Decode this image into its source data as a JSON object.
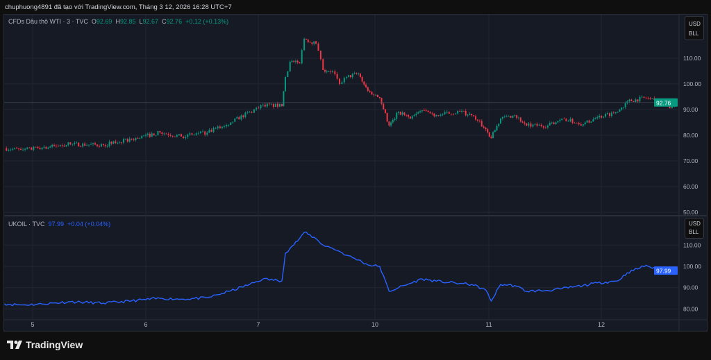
{
  "caption": "chuphuong4891 đã tạo với TradingView.com, Tháng 3 12, 2026 16:28 UTC+7",
  "top_legend": {
    "symbol": "CFDs Dầu thô WTI · 3 · TVC",
    "o_label": "O",
    "o": "92.69",
    "h_label": "H",
    "h": "92.85",
    "l_label": "L",
    "l": "92.67",
    "c_label": "C",
    "c": "92.76",
    "change": "+0.12 (+0.13%)"
  },
  "bottom_legend": {
    "symbol": "UKOIL · TVC",
    "last": "97.99",
    "change": "+0.04 (+0.04%)"
  },
  "unit": {
    "currency": "USD",
    "unit": "BLL"
  },
  "brand": "TradingView",
  "colors": {
    "up": "#089981",
    "down": "#f23645",
    "line": "#2962ff",
    "background": "#161a25",
    "grid": "#232632"
  },
  "chart_data": [
    {
      "type": "candlestick",
      "name": "CFDs Dầu thô WTI",
      "last_price": "92.76",
      "ylim": [
        50,
        118
      ],
      "yticks": [
        "110.00",
        "100.00",
        "90.00",
        "80.00",
        "70.00",
        "60.00",
        "50.00"
      ],
      "xticks": [
        "5",
        "6",
        "7",
        "10",
        "11",
        "12"
      ],
      "grid": true,
      "x": [
        "4 18:00",
        "4 21:30",
        "5 02:00",
        "5 08:00",
        "5 15:00",
        "5 21:00",
        "6 03:00",
        "6 07:30",
        "6 13:00",
        "6 18:00",
        "6 22:00",
        "7 01:00",
        "7 05:00",
        "9 05:00",
        "9 06:00",
        "9 08:00",
        "9 09:00",
        "9 11:30",
        "9 13:00",
        "9 15:00",
        "9 16:30",
        "9 18:00",
        "9 20:30",
        "9 22:30",
        "10 01:00",
        "10 03:00",
        "10 05:00",
        "10 07:30",
        "10 10:00",
        "10 13:00",
        "10 18:00",
        "10 20:30",
        "10 23:30",
        "11 00:30",
        "11 02:30",
        "11 05:30",
        "11 08:00",
        "11 12:30",
        "11 15:30",
        "11 20:00",
        "11 23:00",
        "12 03:30",
        "12 05:30",
        "12 09:30",
        "12 13:00",
        "12 14:30",
        "12 16:00"
      ],
      "values": [
        74.9,
        74.3,
        75.1,
        76.5,
        76.2,
        78.4,
        81.1,
        79.5,
        81,
        85,
        89,
        91.9,
        91.4,
        102.7,
        108.6,
        108,
        117.6,
        115.7,
        105.4,
        104.9,
        100,
        102.7,
        104,
        97.3,
        94.6,
        83.8,
        89.2,
        86.5,
        89.7,
        87.8,
        89.2,
        87.8,
        82.4,
        78.9,
        86.5,
        87.8,
        83.8,
        83.8,
        86.5,
        84.3,
        87,
        89.2,
        93.2,
        94.6,
        92.4,
        90.5,
        92.76
      ]
    },
    {
      "type": "line",
      "name": "UKOIL",
      "last_price": "97.99",
      "ylim": [
        76,
        120
      ],
      "yticks": [
        "110.00",
        "100.00",
        "90.00",
        "80.00"
      ],
      "grid": true,
      "x": [
        "4 18:00",
        "4 21:30",
        "5 02:00",
        "5 08:00",
        "5 15:00",
        "5 21:00",
        "6 03:00",
        "6 07:30",
        "6 13:00",
        "6 18:00",
        "6 22:00",
        "7 01:00",
        "7 05:00",
        "9 05:00",
        "9 06:00",
        "9 08:00",
        "9 09:00",
        "9 11:30",
        "9 13:00",
        "9 15:00",
        "9 16:30",
        "9 18:00",
        "9 20:30",
        "9 22:30",
        "10 01:00",
        "10 03:00",
        "10 05:00",
        "10 07:30",
        "10 10:00",
        "10 13:00",
        "10 18:00",
        "10 20:30",
        "10 23:30",
        "11 00:30",
        "11 02:30",
        "11 05:30",
        "11 08:00",
        "11 12:30",
        "11 15:30",
        "11 20:00",
        "11 23:00",
        "12 03:30",
        "12 05:30",
        "12 09:30",
        "12 13:00",
        "12 14:30",
        "12 16:00"
      ],
      "values": [
        82.4,
        81.9,
        82.3,
        83.4,
        82.7,
        83.8,
        85,
        84.6,
        85.2,
        88.5,
        91.5,
        94.1,
        93.2,
        106.2,
        108.5,
        113,
        116,
        113,
        110,
        108.5,
        107,
        105.2,
        103,
        100.7,
        100,
        88.3,
        90,
        92,
        94.1,
        93,
        92,
        91.5,
        88.9,
        83.7,
        91.5,
        91,
        88.3,
        88.7,
        89.5,
        91,
        92.2,
        93.2,
        97,
        100.5,
        97.4,
        97.5,
        97.99
      ]
    }
  ]
}
